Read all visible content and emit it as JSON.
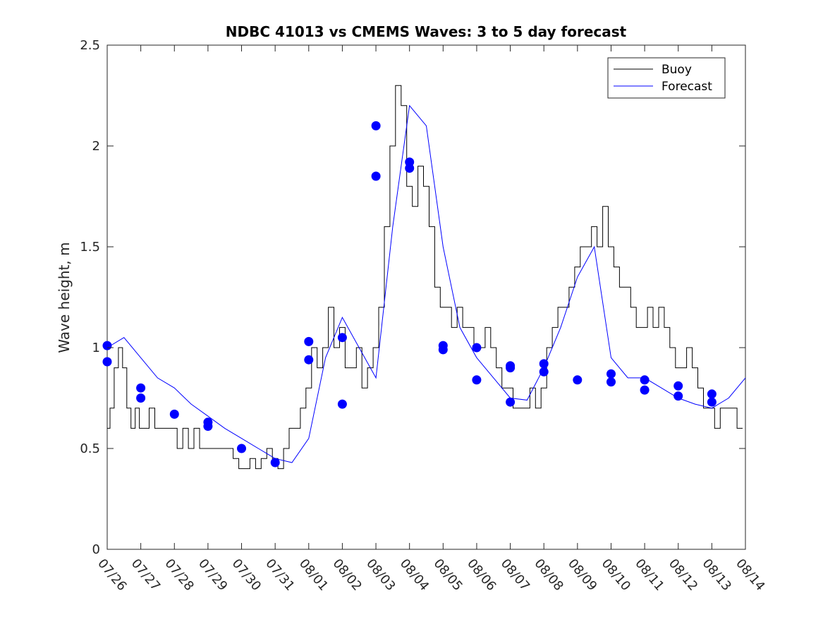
{
  "chart_data": {
    "type": "line",
    "title": "NDBC 41013 vs CMEMS Waves: 3 to 5 day forecast",
    "xlabel": "",
    "ylabel": "Wave height, m",
    "xlim": [
      "07/26",
      "08/14"
    ],
    "ylim": [
      0,
      2.5
    ],
    "yticks": [
      "0",
      "0.5",
      "1",
      "1.5",
      "2",
      "2.5"
    ],
    "xticks": [
      "07/26",
      "07/27",
      "07/28",
      "07/29",
      "07/30",
      "07/31",
      "08/01",
      "08/02",
      "08/03",
      "08/04",
      "08/05",
      "08/06",
      "08/07",
      "08/08",
      "08/09",
      "08/10",
      "08/11",
      "08/12",
      "08/13",
      "08/14"
    ],
    "grid": false,
    "legend": {
      "placement": "top-right",
      "entries": [
        "Buoy",
        "Forecast"
      ]
    },
    "colors": {
      "buoy": "#000000",
      "forecast": "#0000ff"
    },
    "series": [
      {
        "name": "Buoy",
        "x": [
          "07/26 00:00",
          "07/26 02:00",
          "07/26 05:00",
          "07/26 08:00",
          "07/26 11:00",
          "07/26 14:00",
          "07/26 17:00",
          "07/26 20:00",
          "07/26 23:00",
          "07/27 02:00",
          "07/27 06:00",
          "07/27 10:00",
          "07/27 14:00",
          "07/27 18:00",
          "07/27 22:00",
          "07/28 02:00",
          "07/28 06:00",
          "07/28 10:00",
          "07/28 14:00",
          "07/28 18:00",
          "07/28 22:00",
          "07/29 02:00",
          "07/29 06:00",
          "07/29 10:00",
          "07/29 14:00",
          "07/29 18:00",
          "07/29 22:00",
          "07/30 02:00",
          "07/30 06:00",
          "07/30 10:00",
          "07/30 14:00",
          "07/30 18:00",
          "07/30 22:00",
          "07/31 02:00",
          "07/31 06:00",
          "07/31 10:00",
          "07/31 14:00",
          "07/31 18:00",
          "07/31 22:00",
          "08/01 02:00",
          "08/01 06:00",
          "08/01 10:00",
          "08/01 14:00",
          "08/01 18:00",
          "08/01 22:00",
          "08/02 02:00",
          "08/02 06:00",
          "08/02 10:00",
          "08/02 14:00",
          "08/02 18:00",
          "08/02 22:00",
          "08/03 02:00",
          "08/03 06:00",
          "08/03 10:00",
          "08/03 14:00",
          "08/03 18:00",
          "08/03 22:00",
          "08/04 02:00",
          "08/04 06:00",
          "08/04 10:00",
          "08/04 14:00",
          "08/04 18:00",
          "08/04 22:00",
          "08/05 02:00",
          "08/05 06:00",
          "08/05 10:00",
          "08/05 14:00",
          "08/05 18:00",
          "08/05 22:00",
          "08/06 02:00",
          "08/06 06:00",
          "08/06 10:00",
          "08/06 14:00",
          "08/06 18:00",
          "08/06 22:00",
          "08/07 02:00",
          "08/07 06:00",
          "08/07 10:00",
          "08/07 14:00",
          "08/07 18:00",
          "08/07 22:00",
          "08/08 02:00",
          "08/08 06:00",
          "08/08 10:00",
          "08/08 14:00",
          "08/08 18:00",
          "08/08 22:00",
          "08/09 02:00",
          "08/09 06:00",
          "08/09 10:00",
          "08/09 14:00",
          "08/09 18:00",
          "08/09 22:00",
          "08/10 02:00",
          "08/10 06:00",
          "08/10 10:00",
          "08/10 14:00",
          "08/10 18:00",
          "08/10 22:00",
          "08/11 02:00",
          "08/11 06:00",
          "08/11 10:00",
          "08/11 14:00",
          "08/11 18:00",
          "08/11 22:00",
          "08/12 02:00",
          "08/12 06:00",
          "08/12 10:00",
          "08/12 14:00",
          "08/12 18:00",
          "08/12 22:00",
          "08/13 02:00",
          "08/13 06:00",
          "08/13 10:00",
          "08/13 14:00",
          "08/13 18:00",
          "08/13 22:00"
        ],
        "y": [
          0.6,
          0.7,
          0.9,
          1.0,
          0.9,
          0.7,
          0.6,
          0.7,
          0.6,
          0.6,
          0.7,
          0.6,
          0.6,
          0.6,
          0.6,
          0.5,
          0.6,
          0.5,
          0.6,
          0.5,
          0.5,
          0.5,
          0.5,
          0.5,
          0.5,
          0.45,
          0.4,
          0.4,
          0.45,
          0.4,
          0.45,
          0.5,
          0.45,
          0.4,
          0.5,
          0.6,
          0.6,
          0.7,
          0.8,
          1.0,
          0.9,
          1.0,
          1.2,
          1.0,
          1.1,
          0.9,
          0.9,
          1.0,
          0.8,
          0.9,
          1.0,
          1.2,
          1.6,
          2.0,
          2.3,
          2.2,
          1.8,
          1.7,
          1.9,
          1.8,
          1.6,
          1.3,
          1.2,
          1.2,
          1.1,
          1.2,
          1.1,
          1.1,
          1.0,
          1.0,
          1.1,
          1.0,
          0.9,
          0.8,
          0.8,
          0.7,
          0.7,
          0.7,
          0.8,
          0.7,
          0.8,
          1.0,
          1.1,
          1.2,
          1.2,
          1.3,
          1.4,
          1.5,
          1.5,
          1.6,
          1.5,
          1.7,
          1.5,
          1.4,
          1.3,
          1.3,
          1.2,
          1.1,
          1.1,
          1.2,
          1.1,
          1.2,
          1.1,
          1.0,
          0.9,
          0.9,
          1.0,
          0.9,
          0.8,
          0.7,
          0.7,
          0.6,
          0.7,
          0.7,
          0.7,
          0.6,
          0.6
        ]
      },
      {
        "name": "Forecast",
        "x": [
          "07/26 00:00",
          "07/26 12:00",
          "07/27 00:00",
          "07/27 12:00",
          "07/28 00:00",
          "07/28 12:00",
          "07/29 00:00",
          "07/29 12:00",
          "07/30 00:00",
          "07/30 12:00",
          "07/31 00:00",
          "07/31 12:00",
          "08/01 00:00",
          "08/01 12:00",
          "08/02 00:00",
          "08/02 12:00",
          "08/03 00:00",
          "08/03 12:00",
          "08/04 00:00",
          "08/04 12:00",
          "08/05 00:00",
          "08/05 12:00",
          "08/06 00:00",
          "08/06 12:00",
          "08/07 00:00",
          "08/07 12:00",
          "08/08 00:00",
          "08/08 12:00",
          "08/09 00:00",
          "08/09 12:00",
          "08/10 00:00",
          "08/10 12:00",
          "08/11 00:00",
          "08/11 12:00",
          "08/12 00:00",
          "08/12 12:00",
          "08/13 00:00",
          "08/13 12:00",
          "08/14 00:00"
        ],
        "y": [
          1.0,
          1.05,
          0.95,
          0.85,
          0.8,
          0.72,
          0.66,
          0.6,
          0.55,
          0.5,
          0.45,
          0.43,
          0.55,
          0.95,
          1.15,
          1.0,
          0.85,
          1.6,
          2.2,
          2.1,
          1.5,
          1.1,
          0.95,
          0.85,
          0.75,
          0.74,
          0.9,
          1.1,
          1.35,
          1.5,
          0.95,
          0.85,
          0.85,
          0.8,
          0.75,
          0.72,
          0.7,
          0.75,
          0.85
        ]
      }
    ],
    "markers": {
      "series": "Forecast",
      "x": [
        "07/26 00:00",
        "07/26 00:00",
        "07/27 00:00",
        "07/27 00:00",
        "07/28 00:00",
        "07/29 00:00",
        "07/29 00:00",
        "07/30 00:00",
        "07/31 00:00",
        "08/01 00:00",
        "08/01 00:00",
        "08/02 00:00",
        "08/02 00:00",
        "08/03 00:00",
        "08/03 00:00",
        "08/04 00:00",
        "08/04 00:00",
        "08/05 00:00",
        "08/05 00:00",
        "08/06 00:00",
        "08/06 00:00",
        "08/07 00:00",
        "08/07 00:00",
        "08/07 00:00",
        "08/08 00:00",
        "08/08 00:00",
        "08/09 00:00",
        "08/10 00:00",
        "08/10 00:00",
        "08/11 00:00",
        "08/11 00:00",
        "08/12 00:00",
        "08/12 00:00",
        "08/13 00:00",
        "08/13 00:00"
      ],
      "y": [
        1.01,
        0.93,
        0.8,
        0.75,
        0.67,
        0.63,
        0.61,
        0.5,
        0.43,
        1.03,
        0.94,
        1.05,
        0.72,
        2.1,
        1.85,
        1.92,
        1.89,
        1.01,
        0.99,
        1.0,
        0.84,
        0.91,
        0.9,
        0.73,
        0.92,
        0.88,
        0.84,
        0.87,
        0.83,
        0.84,
        0.79,
        0.81,
        0.76,
        0.77,
        0.73
      ]
    }
  }
}
